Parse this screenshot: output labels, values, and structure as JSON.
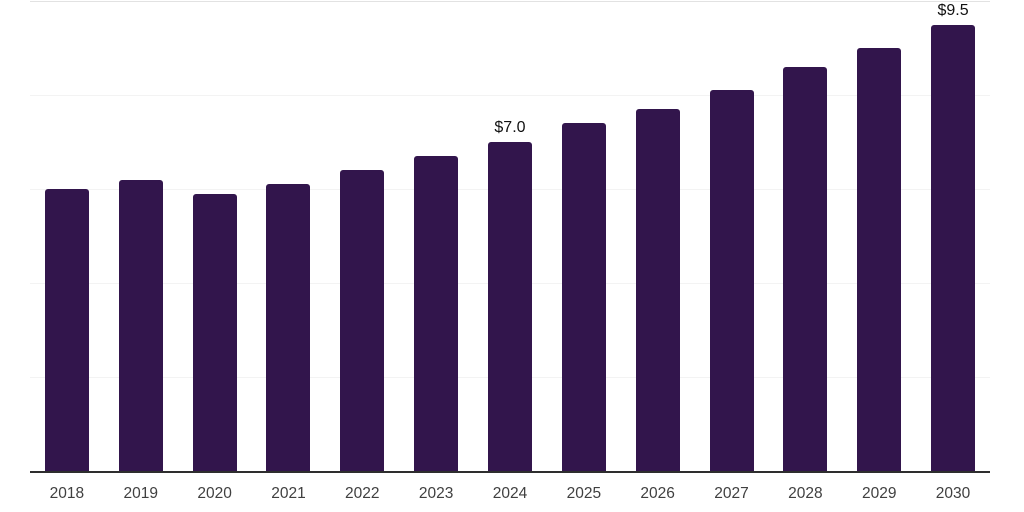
{
  "chart_data": {
    "type": "bar",
    "title": "",
    "xlabel": "",
    "ylabel": "",
    "categories": [
      "2018",
      "2019",
      "2020",
      "2021",
      "2022",
      "2023",
      "2024",
      "2025",
      "2026",
      "2027",
      "2028",
      "2029",
      "2030"
    ],
    "values": [
      6.0,
      6.2,
      5.9,
      6.1,
      6.4,
      6.7,
      7.0,
      7.4,
      7.7,
      8.1,
      8.6,
      9.0,
      9.5
    ],
    "value_labels": [
      "",
      "",
      "",
      "",
      "",
      "",
      "$7.0",
      "",
      "",
      "",
      "",
      "",
      "$9.5"
    ],
    "ylim": [
      0,
      10
    ],
    "gridline_values": [
      10,
      8,
      6,
      4,
      2
    ],
    "grid": "horizontal-faint",
    "legend": "none"
  },
  "colors": {
    "background": "#ffffff",
    "bar": "#32154c",
    "gridline": "#f3f3f3",
    "gridline_top": "#e2e2e2",
    "axis_line": "#2e2e2e",
    "tick_label": "#404040",
    "data_label": "#111111"
  }
}
